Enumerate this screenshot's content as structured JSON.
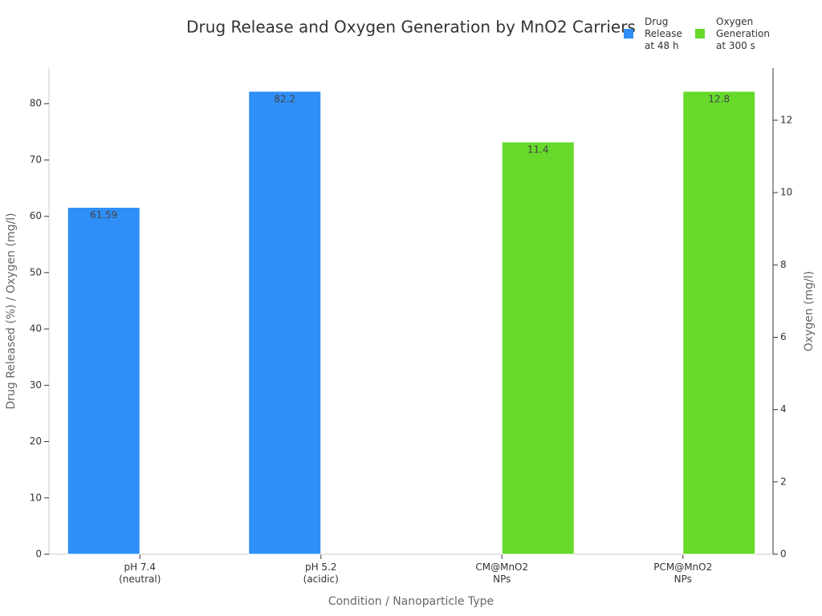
{
  "chart_data": {
    "type": "bar",
    "title": "Drug Release and Oxygen Generation by MnO2 Carriers",
    "x_label": "Condition / Nanoparticle Type",
    "y_label": "Drug Released (%) / Oxygen (mg/l)",
    "y2_label": "Oxygen (mg/l)",
    "categories": [
      "pH 7.4\n(neutral)",
      "pH 5.2\n(acidic)",
      "CM@MnO2\nNPs",
      "PCM@MnO2\nNPs"
    ],
    "series": [
      {
        "name": "Drug\nRelease\nat 48 h",
        "color": "#2f8ff7",
        "axis": "y",
        "values": [
          61.59,
          82.2,
          null,
          null
        ]
      },
      {
        "name": "Oxygen\nGeneration\nat 300 s",
        "color": "#66d92a",
        "axis": "y2",
        "values": [
          null,
          null,
          11.4,
          12.8
        ]
      }
    ],
    "ylim": [
      0,
      86.3
    ],
    "yticks": [
      0,
      10,
      20,
      30,
      40,
      50,
      60,
      70,
      80
    ],
    "y2lim": [
      0,
      13.44
    ],
    "y2ticks": [
      0,
      2,
      4,
      6,
      8,
      10,
      12
    ],
    "grid": false,
    "legend": "top-right"
  }
}
